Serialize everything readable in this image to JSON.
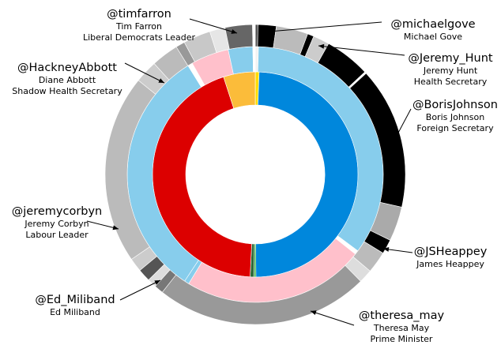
{
  "chart_data": {
    "type": "sunburst",
    "rings": [
      {
        "name": "inner",
        "segments": [
          {
            "value": 0.6,
            "color": "#ffdd00"
          },
          {
            "value": 49.3,
            "color": "#0087dc"
          },
          {
            "value": 0.3,
            "color": "#33aa33"
          },
          {
            "value": 0.6,
            "color": "#2e6b3a"
          },
          {
            "value": 44.2,
            "color": "#dc0000"
          },
          {
            "value": 5.0,
            "color": "#fbbc3a"
          }
        ]
      },
      {
        "name": "middle",
        "segments": [
          {
            "value": 0.4,
            "color": "#f2f2f2"
          },
          {
            "value": 34.8,
            "color": "#87cdec"
          },
          {
            "value": 0.5,
            "color": "#ffffff"
          },
          {
            "value": 23.0,
            "color": "#ffc0cb"
          },
          {
            "value": 0.6,
            "color": "#87cdec"
          },
          {
            "value": 31.9,
            "color": "#87cdec"
          },
          {
            "value": 0.6,
            "color": "#ffffff"
          },
          {
            "value": 4.8,
            "color": "#ffc0cb"
          },
          {
            "value": 3.1,
            "color": "#87cdec"
          },
          {
            "value": 0.3,
            "color": "#ffffff"
          }
        ]
      },
      {
        "name": "outer",
        "segments": [
          {
            "value": 0.3,
            "color": "#555555"
          },
          {
            "value": 2.0,
            "color": "#000000"
          },
          {
            "value": 3.5,
            "color": "#bbbbbb"
          },
          {
            "value": 0.7,
            "color": "#000000"
          },
          {
            "value": 1.8,
            "color": "#cccccc"
          },
          {
            "value": 5.0,
            "color": "#000000"
          },
          {
            "value": 0.2,
            "color": "#ffffff"
          },
          {
            "value": 15.6,
            "color": "#000000"
          },
          {
            "value": 3.8,
            "color": "#aaaaaa"
          },
          {
            "value": 1.6,
            "color": "#000000"
          },
          {
            "value": 2.4,
            "color": "#bbbbbb"
          },
          {
            "value": 1.5,
            "color": "#dddddd"
          },
          {
            "value": 23.5,
            "color": "#999999"
          },
          {
            "value": 1.0,
            "color": "#777777"
          },
          {
            "value": 1.0,
            "color": "#dddddd"
          },
          {
            "value": 1.4,
            "color": "#555555"
          },
          {
            "value": 1.5,
            "color": "#cccccc"
          },
          {
            "value": 20.8,
            "color": "#bbbbbb"
          },
          {
            "value": 2.5,
            "color": "#cccccc"
          },
          {
            "value": 3.0,
            "color": "#bbbbbb"
          },
          {
            "value": 1.0,
            "color": "#999999"
          },
          {
            "value": 3.0,
            "color": "#c8c8c8"
          },
          {
            "value": 1.7,
            "color": "#e6e6e6"
          },
          {
            "value": 3.0,
            "color": "#666666"
          },
          {
            "value": 0.3,
            "color": "#ffffff"
          }
        ]
      }
    ],
    "annotations": [
      {
        "handle": "@timfarron",
        "lines": [
          "Tim Farron",
          "Liberal Democrats Leader"
        ]
      },
      {
        "handle": "@michaelgove",
        "lines": [
          "Michael Gove"
        ]
      },
      {
        "handle": "@HackneyAbbott",
        "lines": [
          "Diane Abbott",
          "Shadow Health Secretary"
        ]
      },
      {
        "handle": "@Jeremy_Hunt",
        "lines": [
          "Jeremy Hunt",
          "Health Secretary"
        ]
      },
      {
        "handle": "@BorisJohnson",
        "lines": [
          "Boris Johnson",
          "Foreign Secretary"
        ]
      },
      {
        "handle": "@jeremycorbyn",
        "lines": [
          "Jeremy Corbyn",
          "Labour Leader"
        ]
      },
      {
        "handle": "@JSHeappey",
        "lines": [
          "James Heappey"
        ]
      },
      {
        "handle": "@Ed_Miliband",
        "lines": [
          "Ed Miliband"
        ]
      },
      {
        "handle": "@theresa_may",
        "lines": [
          "Theresa May",
          "Prime Minister"
        ]
      }
    ]
  }
}
